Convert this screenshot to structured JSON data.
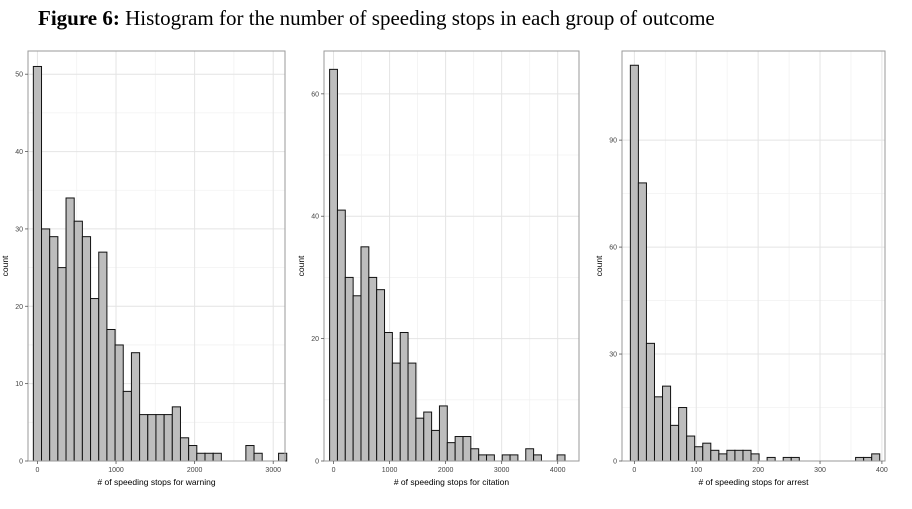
{
  "figure": {
    "title_bold": "Figure 6:",
    "title_rest": " Histogram for the number of speeding stops in each group of outcome"
  },
  "chart_data": [
    {
      "type": "bar",
      "title": "",
      "xlabel": "# of speeding stops for warning",
      "ylabel": "count",
      "xlim": [
        -120,
        3150
      ],
      "ylim": [
        0,
        53
      ],
      "xticks": [
        0,
        1000,
        2000,
        3000
      ],
      "yticks": [
        0,
        10,
        20,
        30,
        40,
        50
      ],
      "bin_start": -52,
      "bin_width": 104,
      "values": [
        51,
        30,
        29,
        25,
        34,
        31,
        29,
        21,
        27,
        17,
        15,
        9,
        14,
        6,
        6,
        6,
        6,
        7,
        3,
        2,
        1,
        1,
        1,
        0,
        0,
        0,
        2,
        1,
        0,
        0,
        1
      ]
    },
    {
      "type": "bar",
      "title": "",
      "xlabel": "# of speeding stops for citation",
      "ylabel": "count",
      "xlim": [
        -170,
        4380
      ],
      "ylim": [
        0,
        67
      ],
      "xticks": [
        0,
        1000,
        2000,
        3000,
        4000
      ],
      "yticks": [
        0,
        20,
        40,
        60
      ],
      "bin_start": -70,
      "bin_width": 140,
      "values": [
        64,
        41,
        30,
        27,
        35,
        30,
        28,
        21,
        16,
        21,
        16,
        7,
        8,
        5,
        9,
        3,
        4,
        4,
        2,
        1,
        1,
        0,
        1,
        1,
        0,
        2,
        1,
        0,
        0,
        1
      ]
    },
    {
      "type": "bar",
      "title": "",
      "xlabel": "# of speeding stops for arrest",
      "ylabel": "count",
      "xlim": [
        -20,
        405
      ],
      "ylim": [
        0,
        115
      ],
      "xticks": [
        0,
        100,
        200,
        300,
        400
      ],
      "yticks": [
        0,
        30,
        60,
        90
      ],
      "bin_start": -6.5,
      "bin_width": 13,
      "values": [
        111,
        78,
        33,
        18,
        21,
        10,
        15,
        7,
        4,
        5,
        3,
        2,
        3,
        3,
        3,
        2,
        0,
        1,
        0,
        1,
        1,
        0,
        0,
        0,
        0,
        0,
        0,
        0,
        1,
        1,
        2
      ]
    }
  ]
}
